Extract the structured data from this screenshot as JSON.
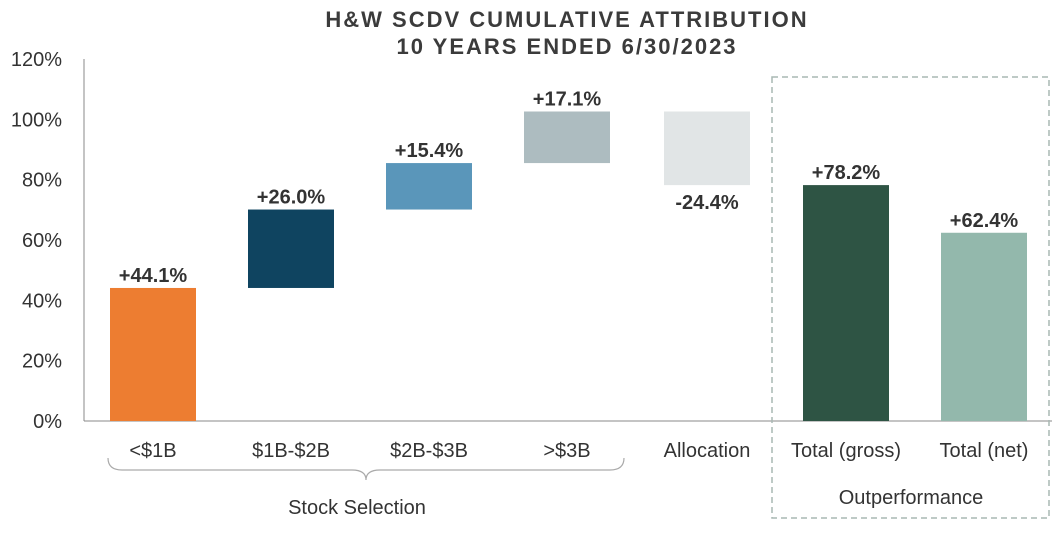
{
  "chart_data": {
    "type": "bar",
    "subtype": "waterfall",
    "title": "H&W SCDV CUMULATIVE ATTRIBUTION",
    "subtitle": "10 YEARS ENDED 6/30/2023",
    "ylim": [
      0,
      120
    ],
    "yticks": [
      "0%",
      "20%",
      "40%",
      "60%",
      "80%",
      "100%",
      "120%"
    ],
    "yticks_values": [
      0,
      20,
      40,
      60,
      80,
      100,
      120
    ],
    "grid": false,
    "bars": [
      {
        "category": "<$1B",
        "start": 0,
        "end": 44.1,
        "label": "+44.1%",
        "color": "#ED7D31"
      },
      {
        "category": "$1B-$2B",
        "start": 44.1,
        "end": 70.1,
        "label": "+26.0%",
        "color": "#0F4460"
      },
      {
        "category": "$2B-$3B",
        "start": 70.1,
        "end": 85.5,
        "label": "+15.4%",
        "color": "#5A96BA"
      },
      {
        "category": ">$3B",
        "start": 85.5,
        "end": 102.6,
        "label": "+17.1%",
        "color": "#ADBCC0"
      },
      {
        "category": "Allocation",
        "start": 102.6,
        "end": 78.2,
        "label": "-24.4%",
        "color": "#E1E5E6"
      },
      {
        "category": "Total (gross)",
        "start": 0,
        "end": 78.2,
        "label": "+78.2%",
        "color": "#2E5444"
      },
      {
        "category": "Total (net)",
        "start": 0,
        "end": 62.4,
        "label": "+62.4%",
        "color": "#93B8AC"
      }
    ],
    "groups": [
      {
        "label": "Stock Selection",
        "categories": [
          "<$1B",
          "$1B-$2B",
          "$2B-$3B",
          ">$3B"
        ],
        "style": "brace"
      },
      {
        "label": "Outperformance",
        "categories": [
          "Total (gross)",
          "Total (net)"
        ],
        "style": "dashed-box"
      }
    ]
  }
}
